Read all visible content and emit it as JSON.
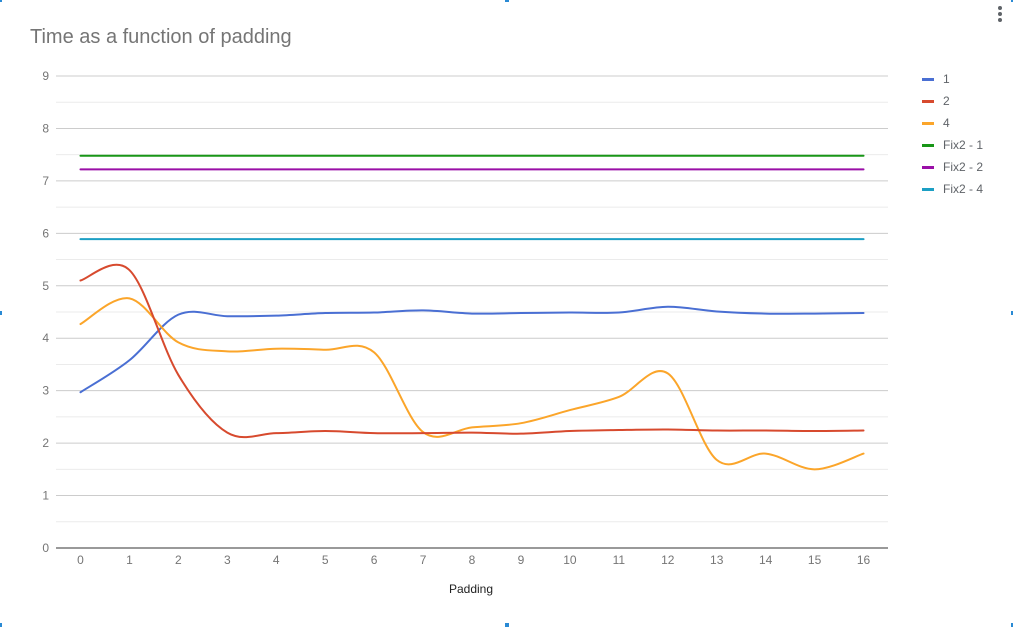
{
  "chart_data": {
    "type": "line",
    "title": "Time as a function of padding",
    "xlabel": "Padding",
    "ylabel": "",
    "x": [
      0,
      1,
      2,
      3,
      4,
      5,
      6,
      7,
      8,
      9,
      10,
      11,
      12,
      13,
      14,
      15,
      16
    ],
    "xlim": [
      -0.5,
      16.5
    ],
    "ylim": [
      0,
      9
    ],
    "yticks": [
      0,
      1,
      2,
      3,
      4,
      5,
      6,
      7,
      8,
      9
    ],
    "minor_grid": true,
    "legend_position": "right",
    "series": [
      {
        "name": "1",
        "color": "#4a6fd3",
        "values": [
          2.97,
          3.58,
          4.45,
          4.42,
          4.43,
          4.48,
          4.49,
          4.53,
          4.47,
          4.48,
          4.49,
          4.49,
          4.6,
          4.51,
          4.47,
          4.47,
          4.48
        ]
      },
      {
        "name": "2",
        "color": "#d74a2e",
        "values": [
          5.1,
          5.3,
          3.3,
          2.2,
          2.19,
          2.23,
          2.19,
          2.19,
          2.2,
          2.18,
          2.23,
          2.25,
          2.26,
          2.24,
          2.24,
          2.23,
          2.24
        ]
      },
      {
        "name": "4",
        "color": "#fba52a",
        "values": [
          4.27,
          4.76,
          3.92,
          3.75,
          3.8,
          3.78,
          3.73,
          2.21,
          2.3,
          2.38,
          2.63,
          2.88,
          3.33,
          1.68,
          1.8,
          1.5,
          1.8
        ]
      },
      {
        "name": "Fix2 - 1",
        "color": "#189617",
        "values": [
          7.48,
          7.48,
          7.48,
          7.48,
          7.48,
          7.48,
          7.48,
          7.48,
          7.48,
          7.48,
          7.48,
          7.48,
          7.48,
          7.48,
          7.48,
          7.48,
          7.48
        ]
      },
      {
        "name": "Fix2 - 2",
        "color": "#9a0fa7",
        "values": [
          7.22,
          7.22,
          7.22,
          7.22,
          7.22,
          7.22,
          7.22,
          7.22,
          7.22,
          7.22,
          7.22,
          7.22,
          7.22,
          7.22,
          7.22,
          7.22,
          7.22
        ]
      },
      {
        "name": "Fix2 - 4",
        "color": "#1c9fc4",
        "values": [
          5.89,
          5.89,
          5.89,
          5.89,
          5.89,
          5.89,
          5.89,
          5.89,
          5.89,
          5.89,
          5.89,
          5.89,
          5.89,
          5.89,
          5.89,
          5.89,
          5.89
        ]
      }
    ]
  },
  "icons": {
    "menu": "more-vert-icon"
  }
}
